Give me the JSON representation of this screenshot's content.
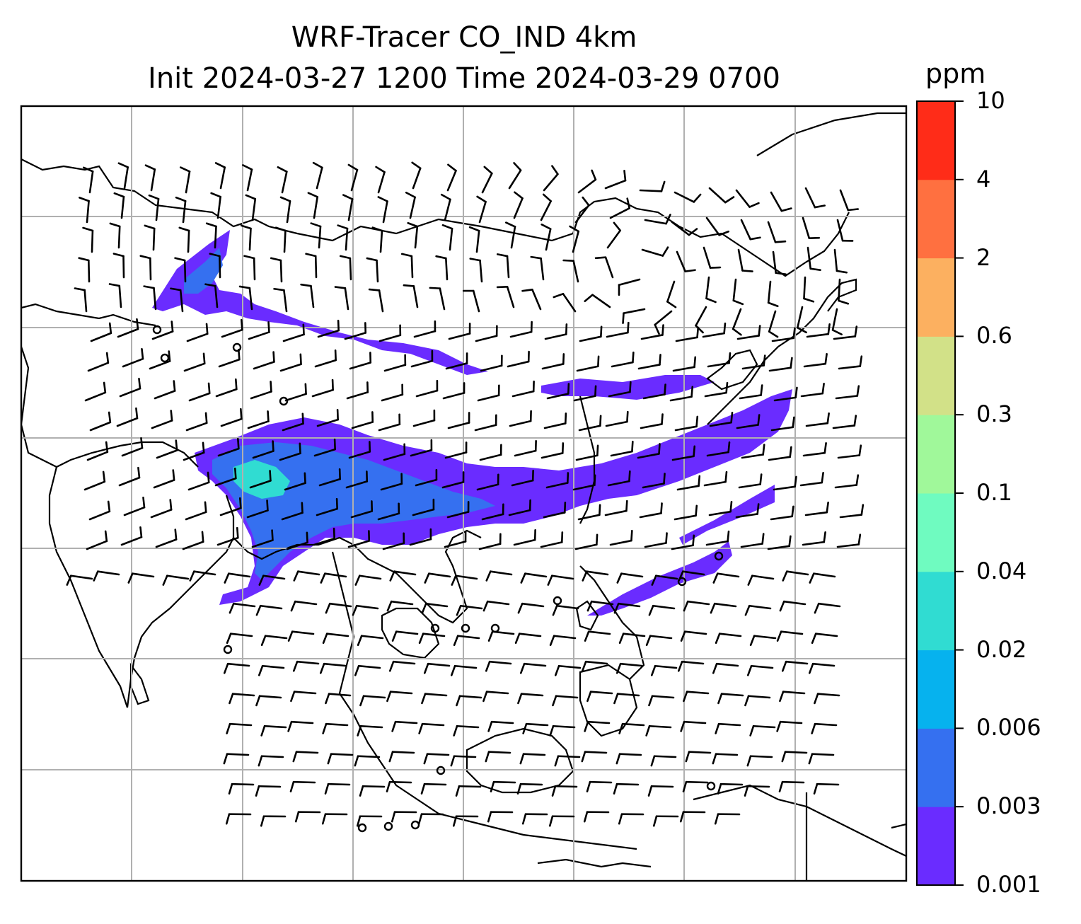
{
  "map": {
    "title_line1": "WRF-Tracer CO_IND 4km",
    "title_line2": "Init 2024-03-27 1200 Time 2024-03-29 0700",
    "field": "CO_IND tracer concentration with wind barbs",
    "colorbar": {
      "unit": "ppm",
      "levels": [
        "0.001",
        "0.003",
        "0.006",
        "0.02",
        "0.04",
        "0.1",
        "0.3",
        "0.6",
        "2",
        "4",
        "10"
      ],
      "colors": [
        "#6a2cff",
        "#3570f0",
        "#06b2ee",
        "#30dcd2",
        "#6ffbc0",
        "#a0f89a",
        "#d2e188",
        "#fcb060",
        "#ff7040",
        "#ff2c18"
      ]
    },
    "plume_colors": {
      "low": "#6a2cff",
      "mid": "#3570f0",
      "high": "#30dcd2"
    },
    "coastline_color": "#000000",
    "gridline_color": "#b0b0b0"
  }
}
